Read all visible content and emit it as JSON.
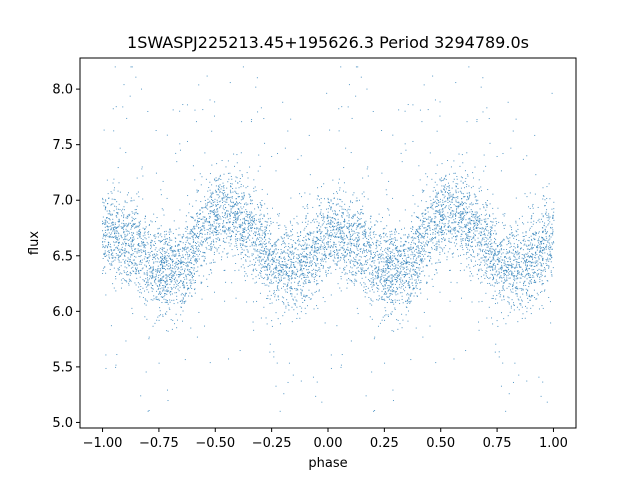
{
  "chart_data": {
    "type": "scatter",
    "title": "1SWASPJ225213.45+195626.3 Period 3294789.0s",
    "xlabel": "phase",
    "ylabel": "flux",
    "xlim": [
      -1.1,
      1.1
    ],
    "ylim": [
      4.95,
      8.28
    ],
    "x_ticks": [
      -1.0,
      -0.75,
      -0.5,
      -0.25,
      0.0,
      0.25,
      0.5,
      0.75,
      1.0
    ],
    "x_tick_labels": [
      "−1.00",
      "−0.75",
      "−0.50",
      "−0.25",
      "0.00",
      "0.25",
      "0.50",
      "0.75",
      "1.00"
    ],
    "y_ticks": [
      5.0,
      5.5,
      6.0,
      6.5,
      7.0,
      7.5,
      8.0
    ],
    "y_tick_labels": [
      "5.0",
      "5.5",
      "6.0",
      "6.5",
      "7.0",
      "7.5",
      "8.0"
    ],
    "grid": false,
    "marker_color": "#1f77b4",
    "series": [
      {
        "phase_profile": [
          [
            -1.0,
            6.7
          ],
          [
            -0.95,
            6.7
          ],
          [
            -0.9,
            6.65
          ],
          [
            -0.85,
            6.6
          ],
          [
            -0.8,
            6.45
          ],
          [
            -0.75,
            6.35
          ],
          [
            -0.7,
            6.35
          ],
          [
            -0.65,
            6.4
          ],
          [
            -0.6,
            6.55
          ],
          [
            -0.55,
            6.7
          ],
          [
            -0.5,
            6.85
          ],
          [
            -0.45,
            6.9
          ],
          [
            -0.4,
            6.85
          ],
          [
            -0.35,
            6.75
          ],
          [
            -0.3,
            6.6
          ],
          [
            -0.25,
            6.45
          ],
          [
            -0.2,
            6.4
          ],
          [
            -0.15,
            6.4
          ],
          [
            -0.1,
            6.45
          ],
          [
            -0.05,
            6.55
          ],
          [
            0.0,
            6.7
          ],
          [
            0.05,
            6.7
          ],
          [
            0.1,
            6.65
          ],
          [
            0.15,
            6.6
          ],
          [
            0.2,
            6.45
          ],
          [
            0.25,
            6.35
          ],
          [
            0.3,
            6.35
          ],
          [
            0.35,
            6.4
          ],
          [
            0.4,
            6.55
          ],
          [
            0.45,
            6.7
          ],
          [
            0.5,
            6.85
          ],
          [
            0.55,
            6.9
          ],
          [
            0.6,
            6.85
          ],
          [
            0.65,
            6.75
          ],
          [
            0.7,
            6.6
          ],
          [
            0.75,
            6.45
          ],
          [
            0.8,
            6.4
          ],
          [
            0.85,
            6.4
          ],
          [
            0.9,
            6.45
          ],
          [
            0.95,
            6.55
          ],
          [
            1.0,
            6.7
          ]
        ]
      }
    ]
  }
}
